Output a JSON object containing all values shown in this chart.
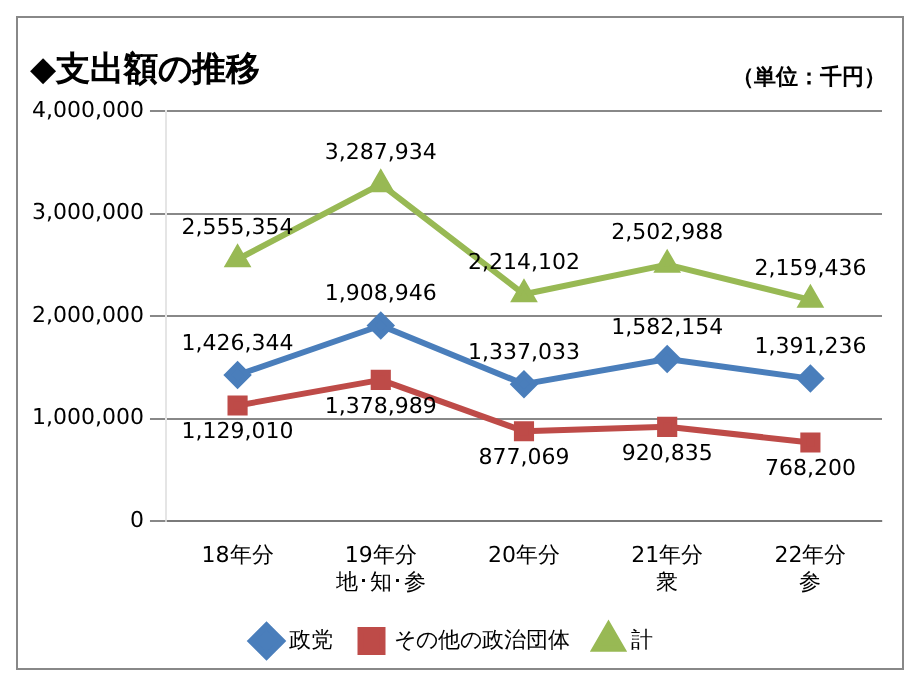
{
  "chart_data": {
    "type": "line",
    "title": "◆支出額の推移",
    "annotations": [
      "（単位：千円）"
    ],
    "categories": [
      "18年分",
      "19年分地･知･参",
      "20年分",
      "21年分衆",
      "22年分参"
    ],
    "series": [
      {
        "name": "政党",
        "color": "#4a7ebb",
        "marker": "diamond",
        "values": [
          1426344,
          1908946,
          1337033,
          1582154,
          1391236
        ],
        "value_labels": [
          "1,426,344",
          "1,908,946",
          "1,337,033",
          "1,582,154",
          "1,391,236"
        ]
      },
      {
        "name": "その他の政治団体",
        "color": "#be4b48",
        "marker": "square",
        "values": [
          1129010,
          1378989,
          877069,
          920835,
          768200
        ],
        "value_labels": [
          "1,129,010",
          "1,378,989",
          "877,069",
          "920,835",
          "768,200"
        ]
      },
      {
        "name": "計",
        "color": "#98b954",
        "marker": "triangle",
        "values": [
          2555354,
          3287934,
          2214102,
          2502988,
          2159436
        ],
        "value_labels": [
          "2,555,354",
          "3,287,934",
          "2,214,102",
          "2,502,988",
          "2,159,436"
        ]
      }
    ],
    "ylim": [
      0,
      4000000
    ],
    "yticks": [
      0,
      {
        "value": 1000000,
        "label": "1,000,000"
      },
      {
        "value": 2000000,
        "label": "2,000,000"
      },
      {
        "value": 3000000,
        "label": "3,000,000"
      },
      {
        "value": 4000000,
        "label": "4,000,000"
      }
    ],
    "grid": "y",
    "legend": "bottom"
  }
}
